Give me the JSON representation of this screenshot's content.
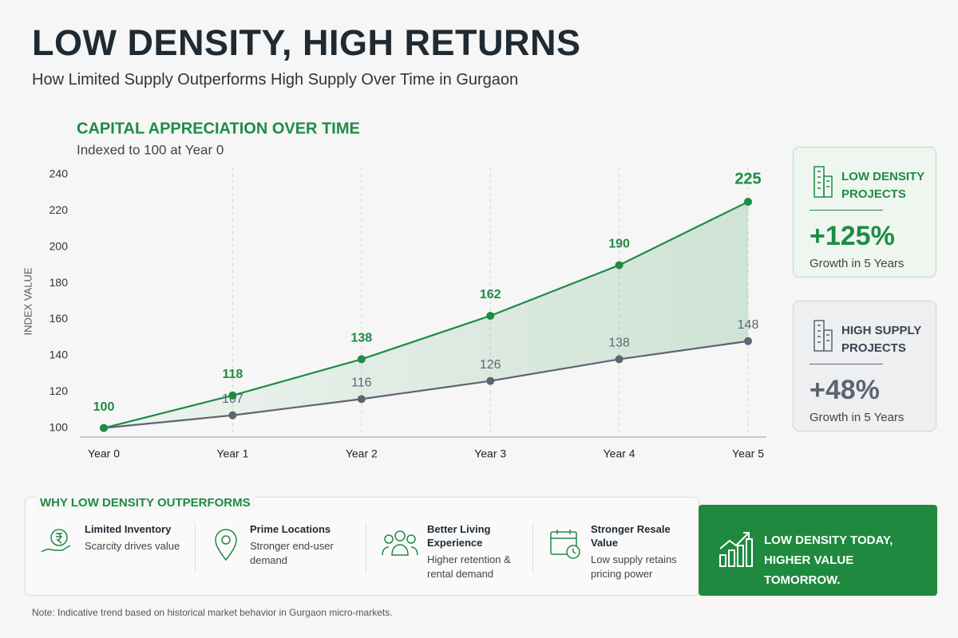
{
  "header": {
    "title": "LOW DENSITY, HIGH RETURNS",
    "subtitle": "How Limited Supply Outperforms High Supply Over Time in Gurgaon"
  },
  "chart_data": {
    "type": "line",
    "title": "CAPITAL APPRECIATION OVER TIME",
    "subtitle": "Indexed to 100 at Year 0",
    "y_label": "INDEX VALUE",
    "categories": [
      "Year 0",
      "Year 1",
      "Year 2",
      "Year 3",
      "Year 4",
      "Year 5"
    ],
    "series": [
      {
        "name": "Low Density Projects",
        "color": "#1f8b45",
        "values": [
          100,
          118,
          138,
          162,
          190,
          225
        ]
      },
      {
        "name": "High Supply Projects",
        "color": "#5c6572",
        "values": [
          100,
          107,
          116,
          126,
          138,
          148
        ]
      }
    ],
    "ylim": [
      95,
      240
    ],
    "yticks": [
      100,
      120,
      140,
      160,
      180,
      200,
      220,
      240
    ],
    "grid": true
  },
  "cards": [
    {
      "title": "LOW DENSITY PROJECTS",
      "value": "+125%",
      "caption": "Growth in 5 Years"
    },
    {
      "title": "HIGH SUPPLY PROJECTS",
      "value": "+48%",
      "caption": "Growth in 5 Years"
    }
  ],
  "reasons": {
    "title": "WHY LOW DENSITY OUTPERFORMS",
    "items": [
      {
        "title": "Limited Inventory",
        "text": "Scarcity drives value"
      },
      {
        "title": "Prime Locations",
        "text": "Stronger end-user demand"
      },
      {
        "title": "Better Living Experience",
        "text": "Higher retention & rental demand"
      },
      {
        "title": "Stronger Resale Value",
        "text": "Low supply retains pricing power"
      }
    ]
  },
  "callout": "LOW DENSITY TODAY, HIGHER VALUE TOMORROW.",
  "note": "Note: Indicative trend based on historical market behavior in Gurgaon micro-markets."
}
